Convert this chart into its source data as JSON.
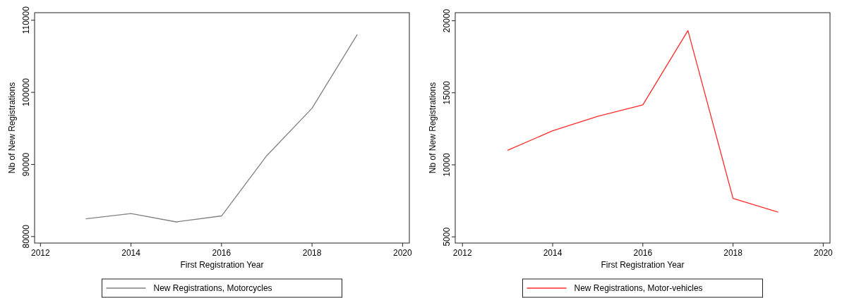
{
  "chart_data": [
    {
      "type": "line",
      "xlabel": "First Registration Year",
      "ylabel": "Nb of New Registrations",
      "x": [
        2013,
        2014,
        2015,
        2016,
        2017,
        2018,
        2019
      ],
      "series": [
        {
          "name": "New Registrations, Motorcycles",
          "color": "#808080",
          "values": [
            82450,
            83200,
            82030,
            82860,
            91220,
            97800,
            108040
          ]
        }
      ],
      "xlim": [
        2011.87,
        2020.15
      ],
      "xticks": [
        2012,
        2014,
        2016,
        2018,
        2020
      ],
      "ylim": [
        79100,
        111050
      ],
      "yticks": [
        80000,
        90000,
        100000,
        110000
      ],
      "grid": false,
      "legend": "bottom"
    },
    {
      "type": "line",
      "xlabel": "First Registration Year",
      "ylabel": "Nb of New Registrations",
      "x": [
        2013,
        2014,
        2015,
        2016,
        2017,
        2018,
        2019
      ],
      "series": [
        {
          "name": "New Registrations, Motor-vehicles",
          "color": "#ff2a2a",
          "values": [
            11010,
            12360,
            13370,
            14160,
            19320,
            7670,
            6710
          ]
        }
      ],
      "xlim": [
        2011.84,
        2020.15
      ],
      "xticks": [
        2012,
        2014,
        2016,
        2018,
        2020
      ],
      "ylim": [
        4570,
        20560
      ],
      "yticks": [
        5000,
        10000,
        15000,
        20000
      ],
      "grid": false,
      "legend": "bottom"
    }
  ]
}
